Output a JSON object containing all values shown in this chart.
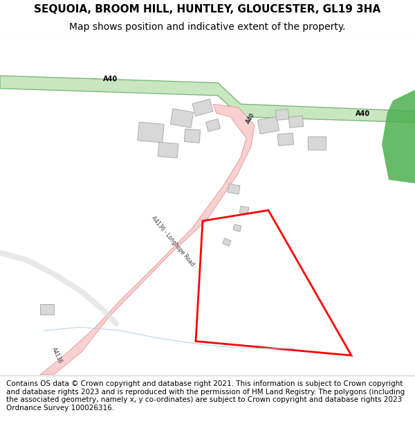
{
  "title": "SEQUOIA, BROOM HILL, HUNTLEY, GLOUCESTER, GL19 3HA",
  "subtitle": "Map shows position and indicative extent of the property.",
  "footer": "Contains OS data © Crown copyright and database right 2021. This information is subject to Crown copyright and database rights 2023 and is reproduced with the permission of HM Land Registry. The polygons (including the associated geometry, namely x, y co-ordinates) are subject to Crown copyright and database rights 2023 Ordnance Survey 100026316.",
  "bg_color": "#f8f8f8",
  "map_bg": "#ffffff",
  "road_a40_color": "#c8e6c0",
  "road_a40_stroke": "#7db87d",
  "road_a4136_color": "#f8d0d0",
  "road_a4136_stroke": "#e08080",
  "building_color": "#d8d8d8",
  "building_stroke": "#aaaaaa",
  "plot_color": "#ff0000",
  "plot_linewidth": 2.0,
  "green_patch_color": "#4caf50",
  "water_color": "#a8d0e8",
  "title_fontsize": 11,
  "subtitle_fontsize": 10,
  "footer_fontsize": 7.5,
  "road_label_fontsize": 7
}
